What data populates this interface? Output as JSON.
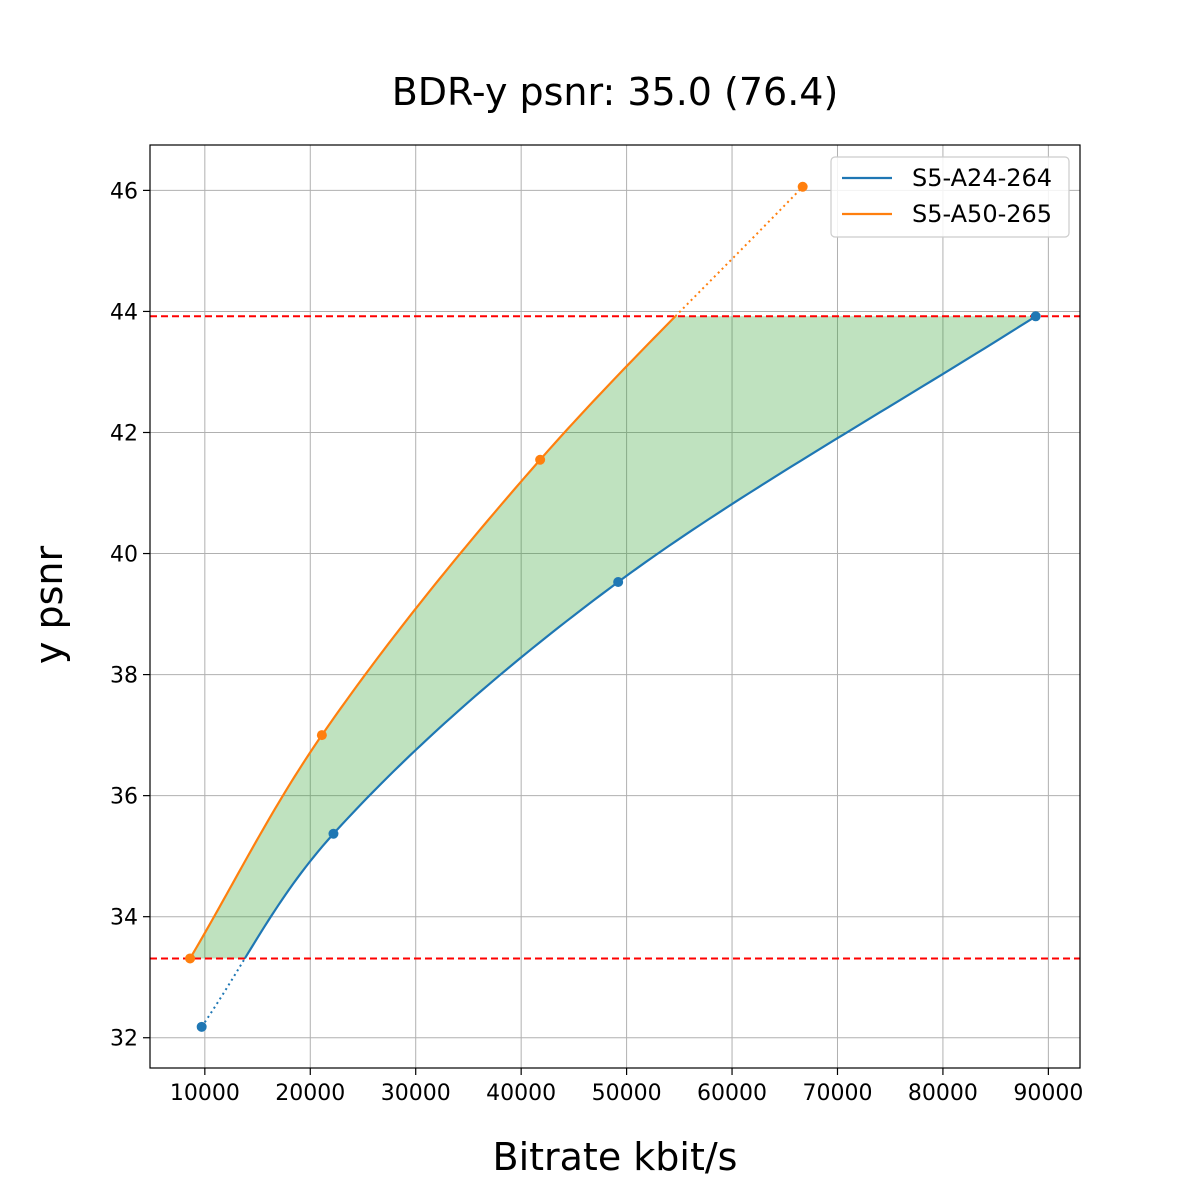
{
  "chart_data": {
    "type": "line",
    "title": "BDR-y psnr: 35.0 (76.4)",
    "xlabel": "Bitrate kbit/s",
    "ylabel": "y psnr",
    "xlim": [
      4800,
      93000
    ],
    "ylim": [
      31.5,
      46.75
    ],
    "xticks": [
      10000,
      20000,
      30000,
      40000,
      50000,
      60000,
      70000,
      80000,
      90000
    ],
    "yticks": [
      32,
      34,
      36,
      38,
      40,
      42,
      44,
      46
    ],
    "grid": true,
    "legend_position": "top-right",
    "series": [
      {
        "name": "S5-A24-264",
        "color": "#1f77b4",
        "points": [
          {
            "x": 9700,
            "y": 32.18
          },
          {
            "x": 22200,
            "y": 35.37
          },
          {
            "x": 49200,
            "y": 39.53
          },
          {
            "x": 88800,
            "y": 43.92
          }
        ]
      },
      {
        "name": "S5-A50-265",
        "color": "#ff7f0e",
        "points": [
          {
            "x": 8600,
            "y": 33.31
          },
          {
            "x": 21100,
            "y": 37.0
          },
          {
            "x": 41800,
            "y": 41.55
          },
          {
            "x": 66700,
            "y": 46.06
          }
        ]
      }
    ],
    "reference_lines": [
      {
        "axis": "y",
        "value": 43.92,
        "color": "#ff0000",
        "style": "dashed"
      },
      {
        "axis": "y",
        "value": 33.31,
        "color": "#ff0000",
        "style": "dashed"
      }
    ],
    "shaded_region": {
      "between": [
        "S5-A50-265",
        "S5-A24-264"
      ],
      "y_range": [
        33.31,
        43.92
      ],
      "color": "#2ca02c",
      "opacity": 0.3
    }
  }
}
